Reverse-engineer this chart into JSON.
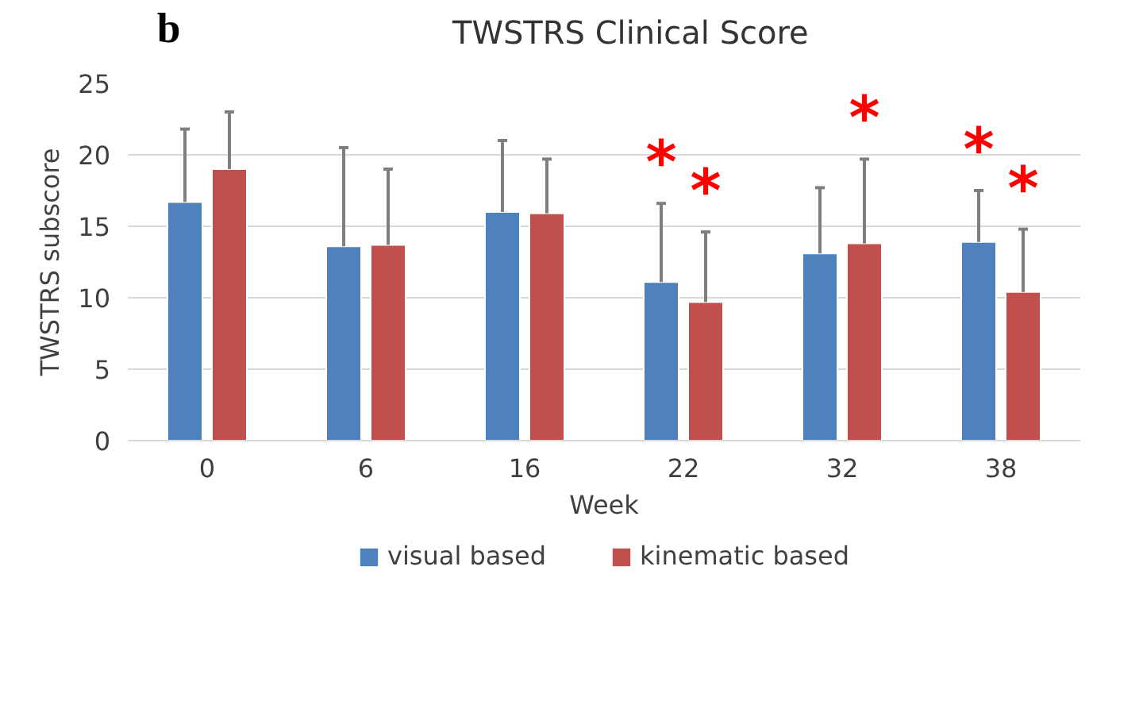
{
  "chart_data": {
    "type": "bar",
    "title": "TWSTRS Clinical Score",
    "xlabel": "Week",
    "ylabel": "TWSTRS subscore",
    "categories": [
      "0",
      "6",
      "16",
      "22",
      "32",
      "38"
    ],
    "series": [
      {
        "name": "visual based",
        "color": "#4f81bd",
        "values": [
          16.7,
          13.6,
          16.0,
          11.1,
          13.1,
          13.9
        ],
        "errors": [
          [
            16.7,
            21.8
          ],
          [
            13.6,
            20.5
          ],
          [
            16.0,
            21.0
          ],
          [
            11.1,
            16.6
          ],
          [
            13.1,
            17.7
          ],
          [
            13.9,
            17.5
          ]
        ]
      },
      {
        "name": "kinematic based",
        "color": "#c0504d",
        "values": [
          19.0,
          13.7,
          15.9,
          9.7,
          13.8,
          10.4
        ],
        "errors": [
          [
            19.0,
            23.0
          ],
          [
            13.7,
            19.0
          ],
          [
            15.9,
            19.7
          ],
          [
            9.7,
            14.6
          ],
          [
            13.8,
            19.7
          ],
          [
            10.4,
            14.8
          ]
        ]
      }
    ],
    "ylim": [
      0,
      25
    ],
    "yticks": [
      0,
      5,
      10,
      15,
      20,
      25
    ],
    "grid": "y",
    "legend": "bottom",
    "annotations": [
      "b",
      {
        "text": "*",
        "x": "22",
        "y": 11.1
      },
      {
        "text": "*",
        "x": "22",
        "y": 9.7
      },
      {
        "text": "*",
        "x": "32",
        "y": 13.8
      },
      {
        "text": "*",
        "x": "38",
        "y": 13.9
      },
      {
        "text": "*",
        "x": "38",
        "y": 10.4
      }
    ]
  }
}
